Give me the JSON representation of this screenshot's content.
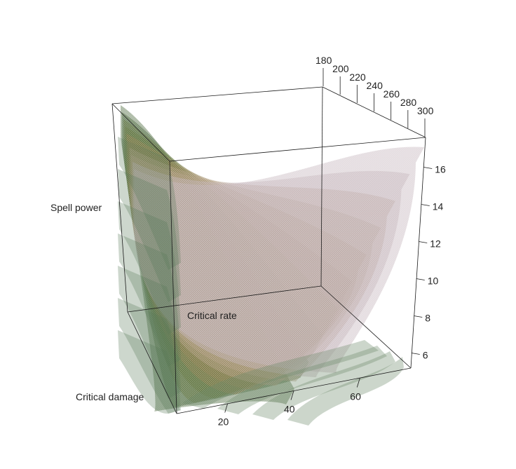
{
  "chart_data": {
    "type": "3d-surface",
    "title": "",
    "axes": {
      "x": {
        "label": "Critical damage",
        "ticks": [
          180,
          200,
          220,
          240,
          260,
          280,
          300
        ],
        "range": [
          180,
          300
        ]
      },
      "y": {
        "label": "Critical rate",
        "ticks": [
          20,
          40,
          60
        ],
        "range": [
          5,
          75
        ]
      },
      "z": {
        "label": "Spell power",
        "ticks": [
          6,
          8,
          10,
          12,
          14,
          16
        ],
        "range": [
          5,
          17
        ]
      }
    },
    "surface_count": 10,
    "surface_colors": [
      "#3c5a2a",
      "#5d7034",
      "#8c7d49",
      "#b09a7e",
      "#c0b0b8"
    ],
    "grid": false,
    "legend": "none"
  }
}
